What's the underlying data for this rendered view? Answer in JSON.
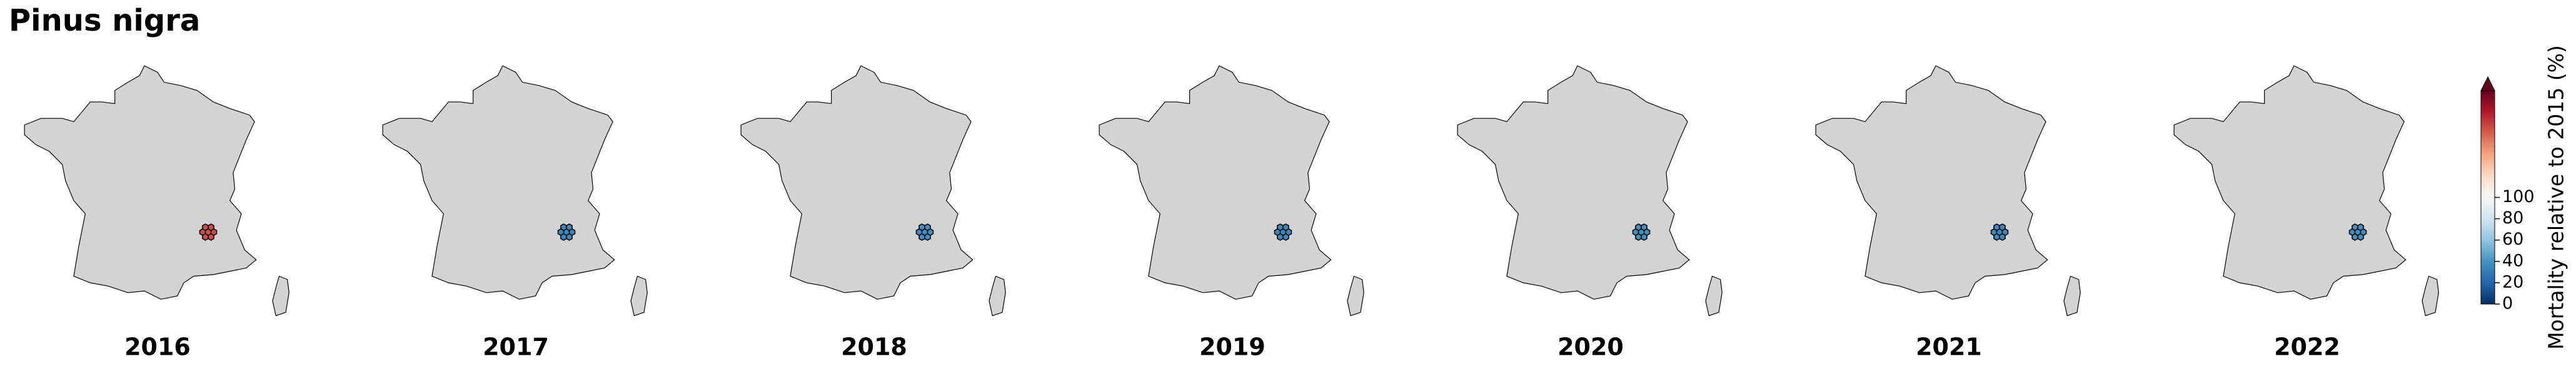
{
  "chart_data": {
    "type": "hexmap",
    "title": "Pinus nigra",
    "categories": [
      "2016",
      "2017",
      "2018",
      "2019",
      "2020",
      "2021",
      "2022"
    ],
    "values": [
      165,
      35,
      38,
      35,
      38,
      35,
      38
    ],
    "colorbar_label": "Mortality relative to 2015 (%)",
    "clim": [
      0,
      200
    ],
    "cticks": [
      0,
      20,
      40,
      60,
      80,
      100
    ],
    "extend": "max",
    "colors": [
      "#053061",
      "#2166ac",
      "#4393c3",
      "#92c5de",
      "#d1e5f0",
      "#f7f7f7",
      "#fddbc7",
      "#f4a582",
      "#d6604d",
      "#b2182b",
      "#67001f"
    ],
    "land_color": "#d3d3d3"
  }
}
